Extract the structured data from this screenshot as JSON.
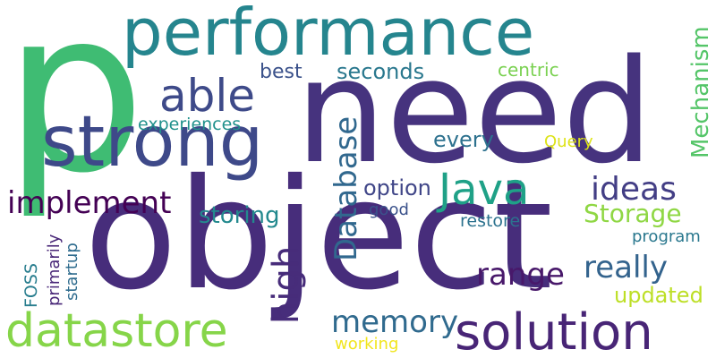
{
  "words": {
    "p": {
      "text": "p",
      "color": "#3fbc73"
    },
    "need": {
      "text": "need",
      "color": "#46337e"
    },
    "object": {
      "text": "object",
      "color": "#472d7b"
    },
    "performance": {
      "text": "performance",
      "color": "#25858e"
    },
    "strong": {
      "text": "strong",
      "color": "#3e4989"
    },
    "datastore": {
      "text": "datastore",
      "color": "#86d549"
    },
    "solution": {
      "text": "solution",
      "color": "#482576"
    },
    "able": {
      "text": "able",
      "color": "#3e4a89"
    },
    "java": {
      "text": "Java",
      "color": "#1fa187"
    },
    "implement": {
      "text": "implement",
      "color": "#440154"
    },
    "database": {
      "text": "Database",
      "color": "#31688e"
    },
    "high": {
      "text": "high",
      "color": "#472c7a"
    },
    "memory": {
      "text": "memory",
      "color": "#306a8e"
    },
    "range": {
      "text": "range",
      "color": "#48186a"
    },
    "really": {
      "text": "really",
      "color": "#33638d"
    },
    "ideas": {
      "text": "ideas",
      "color": "#433e85"
    },
    "storage": {
      "text": "Storage",
      "color": "#8fd744"
    },
    "mechanism": {
      "text": "Mechanism",
      "color": "#54c568"
    },
    "storing": {
      "text": "storing",
      "color": "#23898e"
    },
    "option": {
      "text": "option",
      "color": "#404688"
    },
    "every": {
      "text": "every",
      "color": "#2d718e"
    },
    "seconds": {
      "text": "seconds",
      "color": "#2a788e"
    },
    "best": {
      "text": "best",
      "color": "#3b528b"
    },
    "centric": {
      "text": "centric",
      "color": "#7ad151"
    },
    "experiences": {
      "text": "experiences",
      "color": "#21918c"
    },
    "query": {
      "text": "Query",
      "color": "#dde318"
    },
    "good": {
      "text": "good",
      "color": "#3b528b"
    },
    "restore": {
      "text": "restore",
      "color": "#2c728e"
    },
    "program": {
      "text": "program",
      "color": "#2a788e"
    },
    "updated": {
      "text": "updated",
      "color": "#bddf26"
    },
    "working": {
      "text": "working",
      "color": "#f1e51d"
    },
    "foss": {
      "text": "FOSS",
      "color": "#287d8e"
    },
    "primarily": {
      "text": "primarily",
      "color": "#482677"
    },
    "startup": {
      "text": "startup",
      "color": "#2f6c8e"
    }
  }
}
